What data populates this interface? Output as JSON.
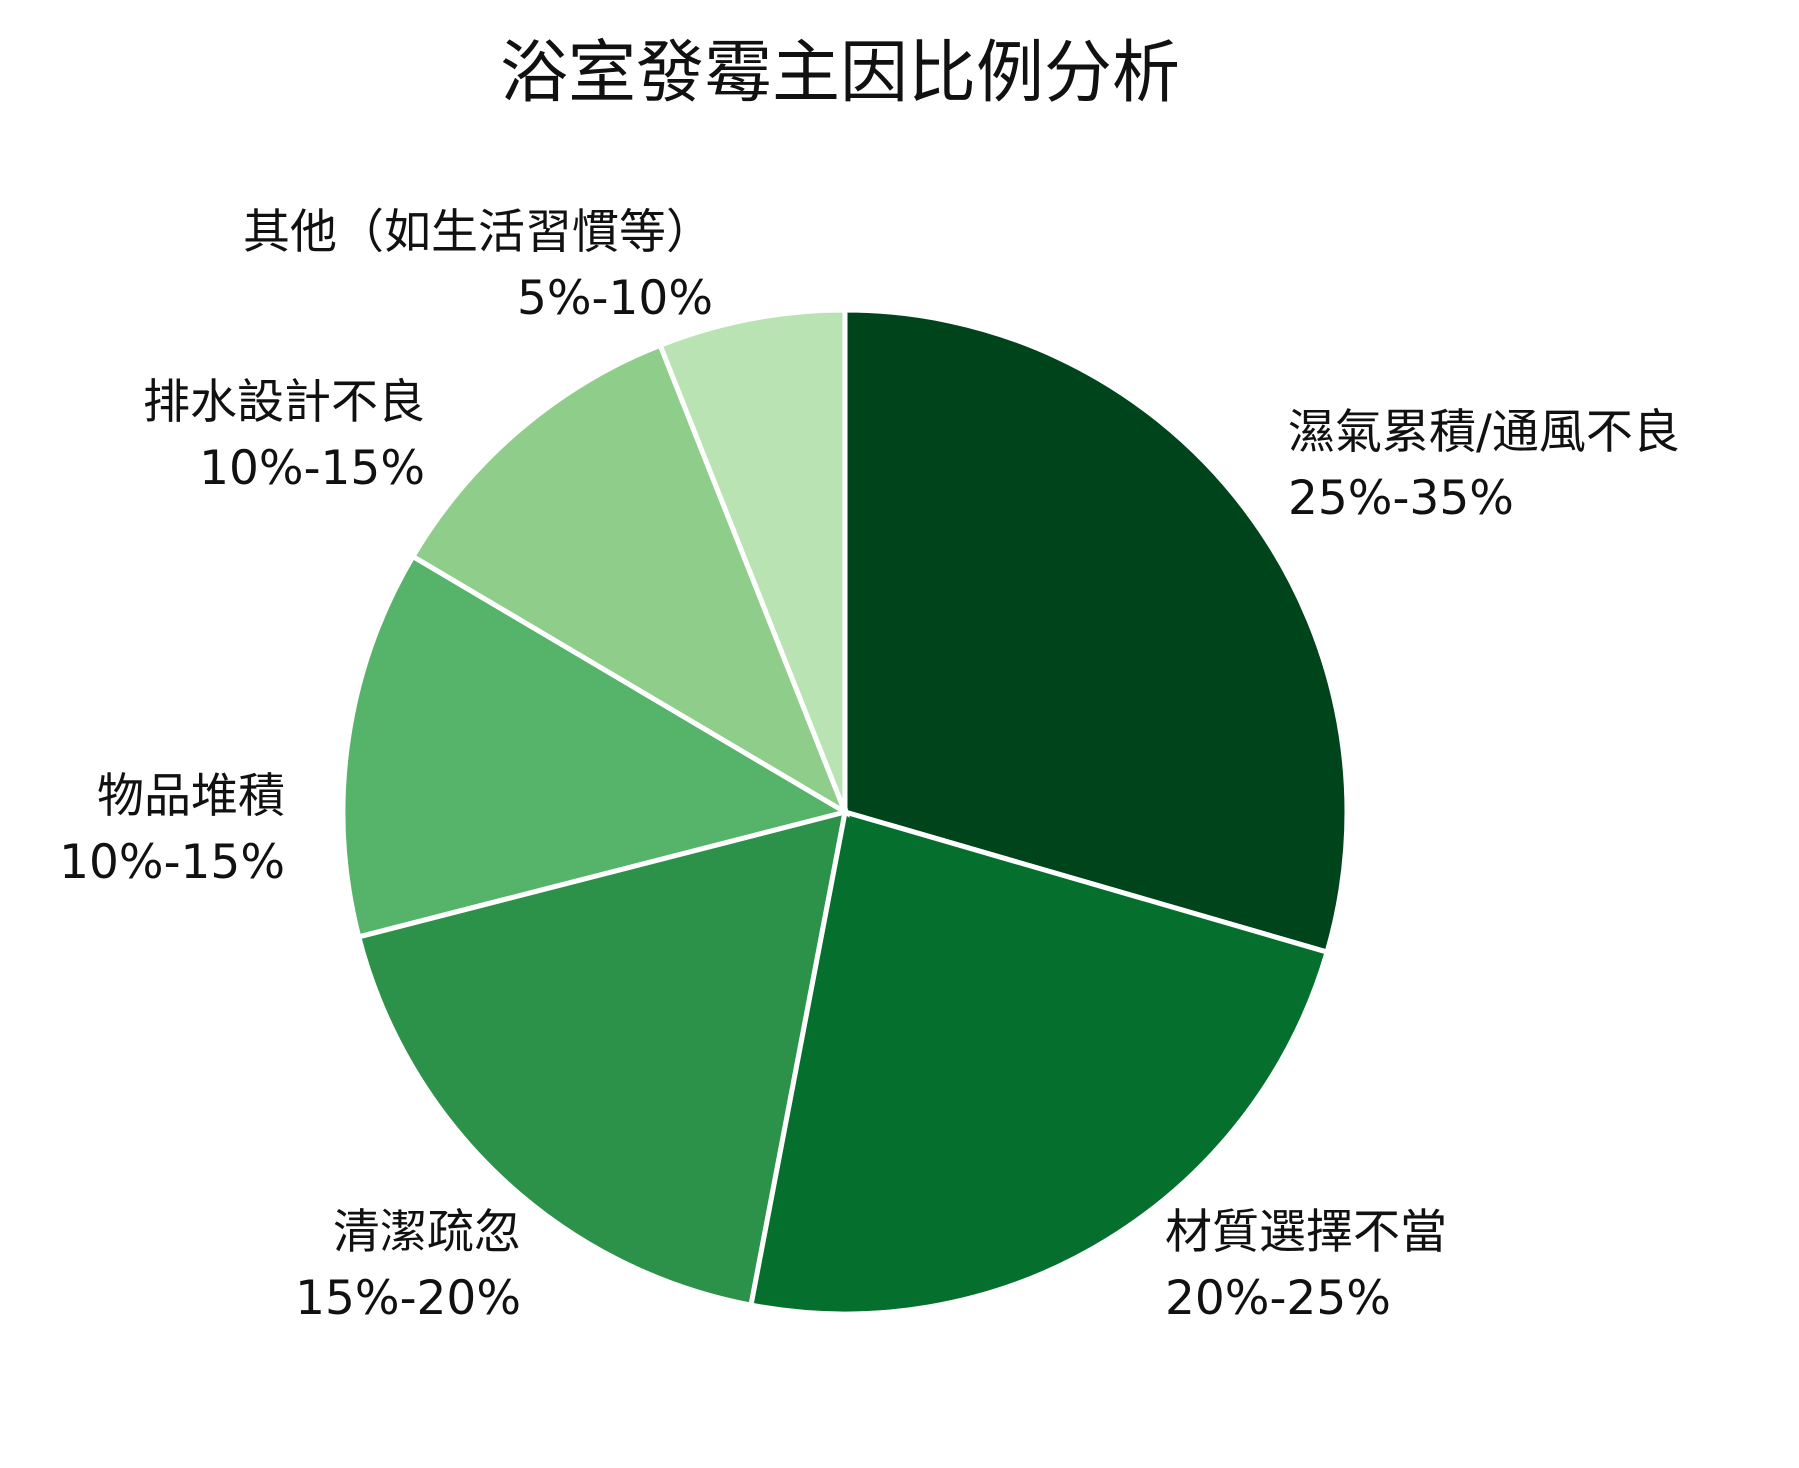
{
  "chart_data": {
    "type": "pie",
    "title": "浴室發霉主因比例分析",
    "slices": [
      {
        "label": "濕氣累積/通風不良",
        "range_text": "25%-35%",
        "value": 29.5,
        "color": "#00441b"
      },
      {
        "label": "材質選擇不當",
        "range_text": "20%-25%",
        "value": 23.5,
        "color": "#056f2e"
      },
      {
        "label": "清潔疏忽",
        "range_text": "15%-20%",
        "value": 18,
        "color": "#2c924a"
      },
      {
        "label": "物品堆積",
        "range_text": "10%-15%",
        "value": 12.5,
        "color": "#55b46a"
      },
      {
        "label": "排水設計不良",
        "range_text": "10%-15%",
        "value": 10.5,
        "color": "#8fce8a"
      },
      {
        "label": "其他（如生活習慣等）",
        "range_text": "5%-10%",
        "value": 6,
        "color": "#b9e3b3"
      }
    ],
    "start": "12 o'clock",
    "direction": "clockwise",
    "legend": "none (labels placed beside slices)"
  }
}
